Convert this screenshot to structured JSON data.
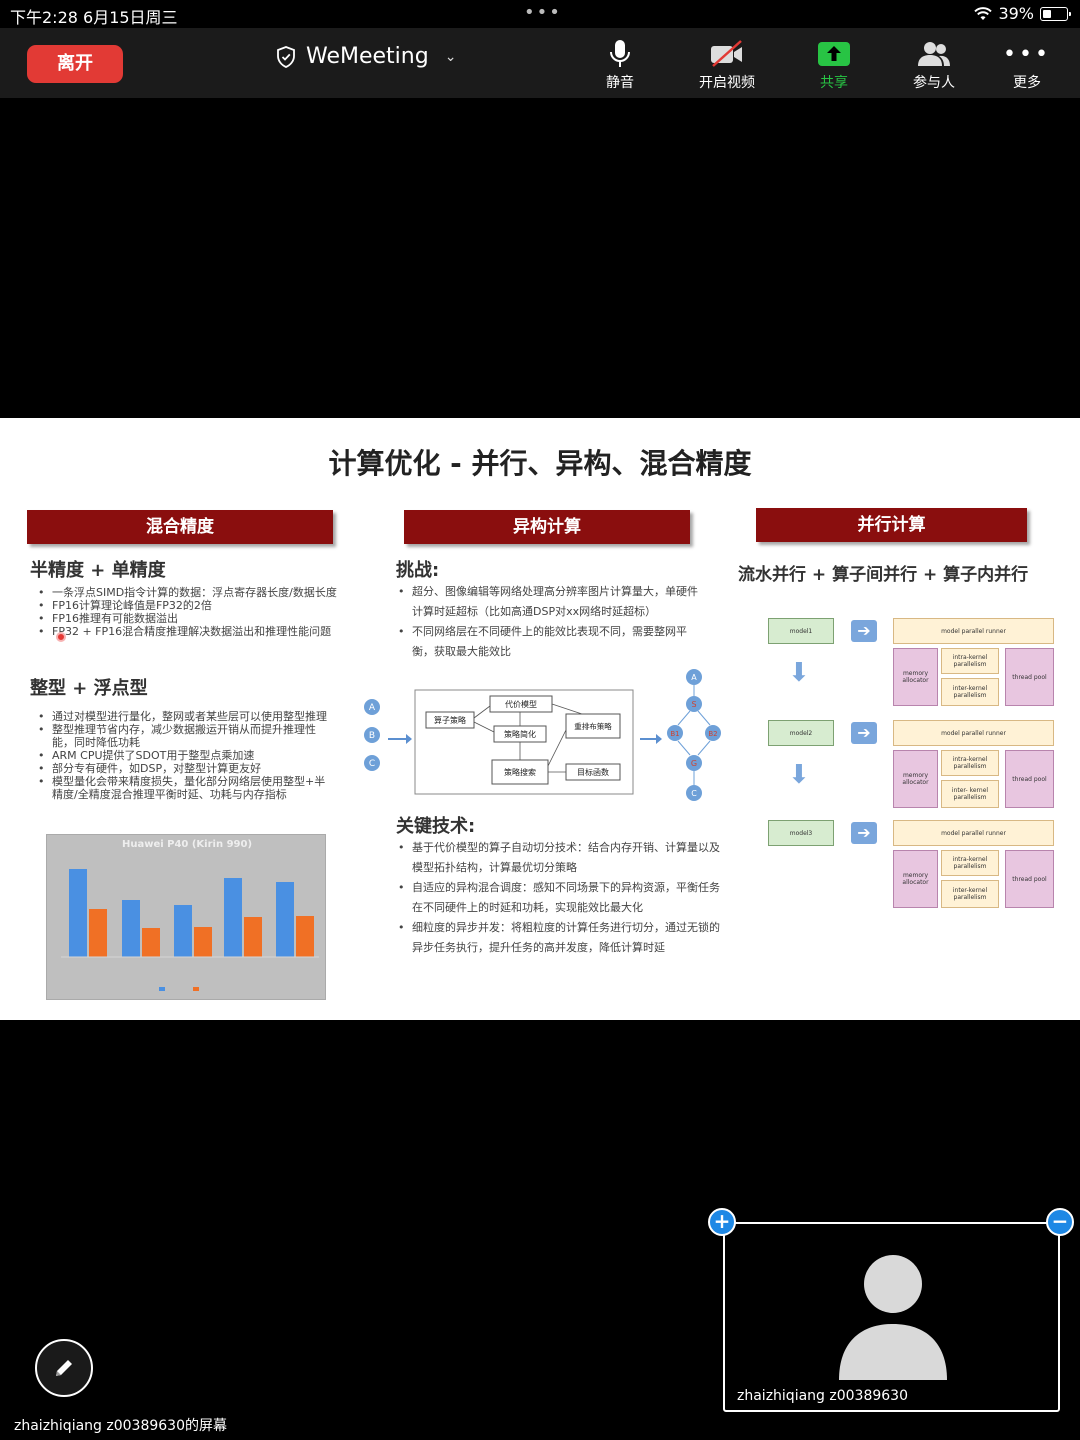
{
  "status_bar": {
    "time_date": "下午2:28   6月15日周三",
    "battery": "39%",
    "battery_level": 0.39
  },
  "toolbar": {
    "leave_label": "离开",
    "meeting_name": "WeMeeting",
    "buttons": {
      "mute": "静音",
      "video": "开启视频",
      "share": "共享",
      "participants": "参与人",
      "more": "更多"
    },
    "share_color": "#28c444",
    "leave_color": "#e23a35"
  },
  "slide": {
    "title": "计算优化 - 并行、异构、混合精度",
    "col1": {
      "header": "混合精度",
      "sub1": "半精度 + 单精度",
      "bullets1": [
        "一条浮点SIMD指令计算的数据：浮点寄存器长度/数据长度",
        "FP16计算理论峰值是FP32的2倍",
        "FP16推理有可能数据溢出",
        "FP32 + FP16混合精度推理解决数据溢出和推理性能问题"
      ],
      "sub2": "整型 + 浮点型",
      "bullets2": [
        "通过对模型进行量化，整网或者某些层可以使用整型推理",
        "整型推理节省内存，减少数据搬运开销从而提升推理性能，同时降低功耗",
        "ARM CPU提供了SDOT用于整型点乘加速",
        "部分专有硬件，如DSP，对整型计算更友好",
        "模型量化会带来精度损失，量化部分网络层使用整型+半精度/全精度混合推理平衡时延、功耗与内存指标"
      ],
      "chart_title": "Huawei P40 (Kirin 990)"
    },
    "col2": {
      "header": "异构计算",
      "challenge_label": "挑战:",
      "challenges": [
        "超分、图像编辑等网络处理高分辨率图片计算量大，单硬件计算时延超标（比如高通DSP对xx网络时延超标）",
        "不同网络层在不同硬件上的能效比表现不同，需要整网平衡，获取最大能效比"
      ],
      "flow": {
        "nodes_left": [
          "A",
          "B",
          "C"
        ],
        "cost_model": "代价模型",
        "op_strategy": "算子策略",
        "simplify": "策略简化",
        "rearrange": "重排布策略",
        "search": "策略搜索",
        "objective": "目标函数",
        "nodes_right": [
          "A",
          "S",
          "B1",
          "B2",
          "G",
          "C"
        ]
      },
      "key_label": "关键技术:",
      "keys": [
        "基于代价模型的算子自动切分技术：结合内存开销、计算量以及模型拓扑结构，计算最优切分策略",
        "自适应的异构混合调度：感知不同场景下的异构资源，平衡任务在不同硬件上的时延和功耗，实现能效比最大化",
        "细粒度的异步并发：将粗粒度的计算任务进行切分，通过无锁的异步任务执行，提升任务的高并发度，降低计算时延"
      ]
    },
    "col3": {
      "header": "并行计算",
      "subtitle": "流水并行 + 算子间并行 + 算子内并行",
      "models": [
        "model1",
        "model2",
        "model3"
      ],
      "runner": "model parallel runner",
      "mem": "memory allocator",
      "intra": "intra-kernel parallelism",
      "inter": "inter-kernel parallelism",
      "inter_b": "inter- kernel parallelism",
      "pool": "thread pool"
    }
  },
  "bottom": {
    "share_owner": "zhaizhiqiang z00389630的屏幕",
    "self_name": "zhaizhiqiang z00389630"
  }
}
